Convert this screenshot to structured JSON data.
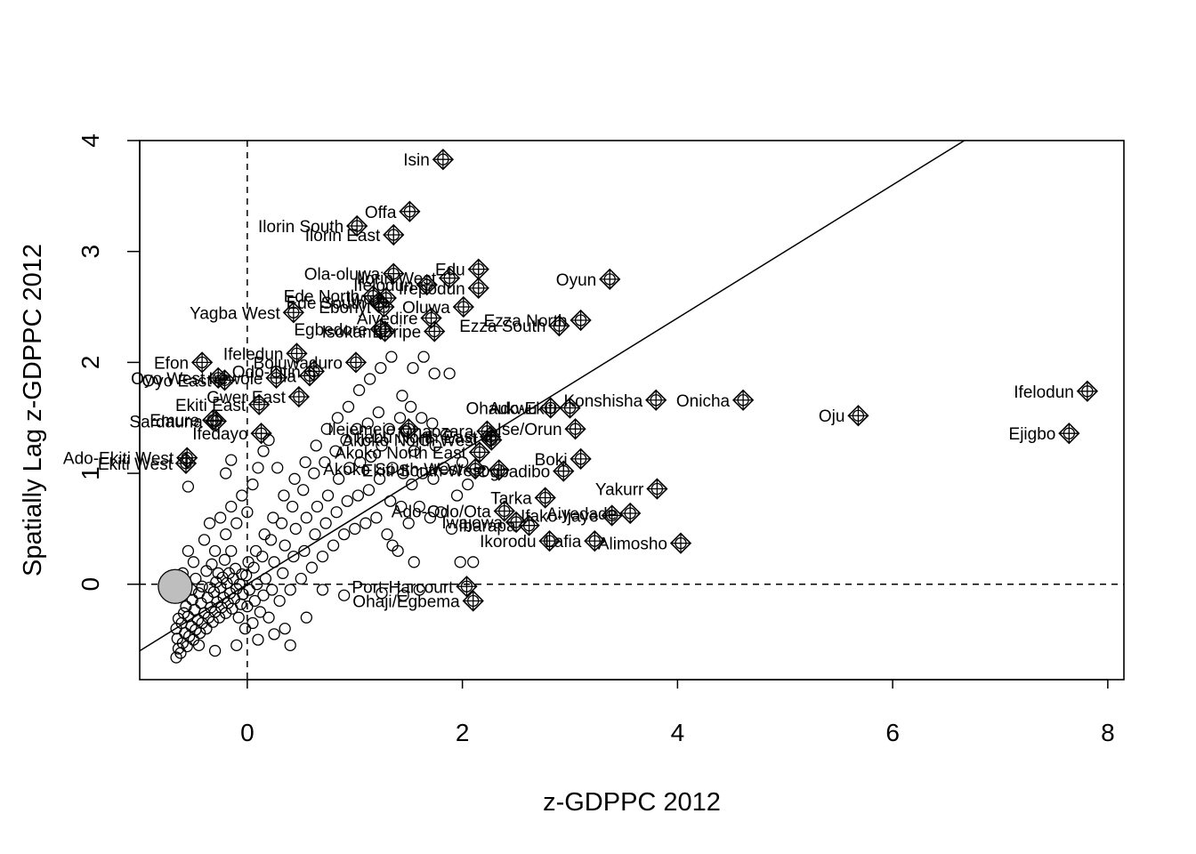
{
  "chart_data": {
    "type": "scatter",
    "title": "",
    "xlabel": "z-GDPPC 2012",
    "ylabel": "Spatially Lag z-GDPPC 2012",
    "xlim": [
      -1.0,
      8.15
    ],
    "ylim": [
      -0.86,
      4.0
    ],
    "xticks": [
      0,
      2,
      4,
      6,
      8
    ],
    "yticks": [
      0,
      1,
      2,
      3,
      4
    ],
    "xtick_labels": [
      "0",
      "2",
      "4",
      "6",
      "8"
    ],
    "ytick_labels": [
      "0",
      "1",
      "2",
      "3",
      "4"
    ],
    "reference_lines": {
      "x_mean": 0,
      "y_mean": 0,
      "style": "dashed"
    },
    "regression_line": {
      "slope": 0.6,
      "intercept": 0.0
    },
    "grid": false,
    "legend": "none",
    "highlight_point": {
      "x": -0.67,
      "y": -0.02
    },
    "influential_points": [
      {
        "label": "Isin",
        "x": 1.82,
        "y": 3.83
      },
      {
        "label": "Offa",
        "x": 1.51,
        "y": 3.36
      },
      {
        "label": "Ilorin South",
        "x": 1.02,
        "y": 3.23
      },
      {
        "label": "Ilorin East",
        "x": 1.36,
        "y": 3.15
      },
      {
        "label": "Edu",
        "x": 2.15,
        "y": 2.84
      },
      {
        "label": "Ola-oluwa",
        "x": 1.36,
        "y": 2.8
      },
      {
        "label": "Ilorin West",
        "x": 1.88,
        "y": 2.76
      },
      {
        "label": "Oyun",
        "x": 3.37,
        "y": 2.75
      },
      {
        "label": "Ifelodun",
        "x": 1.67,
        "y": 2.7
      },
      {
        "label": "Irepodun",
        "x": 2.15,
        "y": 2.67
      },
      {
        "label": "Ede North",
        "x": 1.17,
        "y": 2.6
      },
      {
        "label": "Iwo",
        "x": 1.29,
        "y": 2.58
      },
      {
        "label": "Ede South",
        "x": 1.22,
        "y": 2.54
      },
      {
        "label": "Ebonyi",
        "x": 1.27,
        "y": 2.5
      },
      {
        "label": "Oluwa",
        "x": 2.01,
        "y": 2.5
      },
      {
        "label": "Yagba West",
        "x": 0.43,
        "y": 2.45
      },
      {
        "label": "Aiyedire",
        "x": 1.71,
        "y": 2.4
      },
      {
        "label": "Ezza North",
        "x": 3.1,
        "y": 2.38
      },
      {
        "label": "Ezza South",
        "x": 2.9,
        "y": 2.33
      },
      {
        "label": "Egbedore",
        "x": 1.24,
        "y": 2.3
      },
      {
        "label": "Isokan",
        "x": 1.28,
        "y": 2.28
      },
      {
        "label": "Boripe",
        "x": 1.74,
        "y": 2.28
      },
      {
        "label": "Ifeledun",
        "x": 0.46,
        "y": 2.08
      },
      {
        "label": "Efon",
        "x": -0.42,
        "y": 2.0
      },
      {
        "label": "Boluwaduro",
        "x": 1.01,
        "y": 2.0
      },
      {
        "label": "Odo-Otin",
        "x": 0.62,
        "y": 1.92
      },
      {
        "label": "Ila",
        "x": 0.58,
        "y": 1.88
      },
      {
        "label": "Irewole",
        "x": 0.27,
        "y": 1.86
      },
      {
        "label": "Oyo West",
        "x": -0.27,
        "y": 1.86
      },
      {
        "label": "Oyo East",
        "x": -0.21,
        "y": 1.84
      },
      {
        "label": "Gwer East",
        "x": 0.48,
        "y": 1.69
      },
      {
        "label": "Ekiti East",
        "x": 0.11,
        "y": 1.62
      },
      {
        "label": "Ifelodun",
        "x": 7.81,
        "y": 1.74
      },
      {
        "label": "Onicha",
        "x": 4.61,
        "y": 1.66
      },
      {
        "label": "Konshisha",
        "x": 3.8,
        "y": 1.66
      },
      {
        "label": "Ohaukwu",
        "x": 2.82,
        "y": 1.59
      },
      {
        "label": "Ado-Ekiti",
        "x": 3.0,
        "y": 1.59
      },
      {
        "label": "Oju",
        "x": 5.68,
        "y": 1.52
      },
      {
        "label": "Emure",
        "x": -0.32,
        "y": 1.48
      },
      {
        "label": "Sardauna",
        "x": -0.29,
        "y": 1.47
      },
      {
        "label": "Ise/Orun",
        "x": 3.05,
        "y": 1.4
      },
      {
        "label": "Ohaozara",
        "x": 2.23,
        "y": 1.38
      },
      {
        "label": "Ifedayo",
        "x": 0.13,
        "y": 1.36
      },
      {
        "label": "Ejigbo",
        "x": 7.64,
        "y": 1.36
      },
      {
        "label": "Ijebu North East",
        "x": 2.26,
        "y": 1.33
      },
      {
        "label": "Akoko North West",
        "x": 2.27,
        "y": 1.3
      },
      {
        "label": "Akoko North East",
        "x": 2.16,
        "y": 1.19
      },
      {
        "label": "Ilejemeje",
        "x": 1.5,
        "y": 1.4
      },
      {
        "label": "Boki",
        "x": 3.1,
        "y": 1.13
      },
      {
        "label": "Ado-Ekiti West",
        "x": -0.56,
        "y": 1.14
      },
      {
        "label": "Ekiti West",
        "x": -0.57,
        "y": 1.09
      },
      {
        "label": "Ekiti South West",
        "x": 2.34,
        "y": 1.03
      },
      {
        "label": "Akoko South West",
        "x": 2.12,
        "y": 1.04
      },
      {
        "label": "Ogbadibo",
        "x": 2.94,
        "y": 1.02
      },
      {
        "label": "Yakurr",
        "x": 3.81,
        "y": 0.86
      },
      {
        "label": "Tarka",
        "x": 2.77,
        "y": 0.78
      },
      {
        "label": "Ado-Odo/Ota",
        "x": 2.39,
        "y": 0.66
      },
      {
        "label": "Aiyedade",
        "x": 3.56,
        "y": 0.64
      },
      {
        "label": "Ifako-Ijaye",
        "x": 3.39,
        "y": 0.62
      },
      {
        "label": "Iwajowa",
        "x": 2.5,
        "y": 0.56
      },
      {
        "label": "Ibarapa",
        "x": 2.62,
        "y": 0.53
      },
      {
        "label": "Ikorodu",
        "x": 2.81,
        "y": 0.39
      },
      {
        "label": "Lafia",
        "x": 3.23,
        "y": 0.39
      },
      {
        "label": "Alimosho",
        "x": 4.03,
        "y": 0.37
      },
      {
        "label": "Port-Harcourt",
        "x": 2.04,
        "y": -0.02
      },
      {
        "label": "Ohaji/Egbema",
        "x": 2.1,
        "y": -0.15
      }
    ],
    "points": [
      {
        "x": -0.66,
        "y": -0.66
      },
      {
        "x": -0.64,
        "y": -0.58
      },
      {
        "x": -0.65,
        "y": -0.49
      },
      {
        "x": -0.66,
        "y": -0.4
      },
      {
        "x": -0.64,
        "y": -0.31
      },
      {
        "x": -0.62,
        "y": -0.62
      },
      {
        "x": -0.6,
        "y": -0.53
      },
      {
        "x": -0.58,
        "y": -0.44
      },
      {
        "x": -0.61,
        "y": -0.35
      },
      {
        "x": -0.59,
        "y": -0.26
      },
      {
        "x": -0.56,
        "y": -0.56
      },
      {
        "x": -0.54,
        "y": -0.47
      },
      {
        "x": -0.52,
        "y": -0.38
      },
      {
        "x": -0.55,
        "y": -0.29
      },
      {
        "x": -0.57,
        "y": -0.2
      },
      {
        "x": -0.5,
        "y": -0.5
      },
      {
        "x": -0.48,
        "y": -0.41
      },
      {
        "x": -0.46,
        "y": -0.32
      },
      {
        "x": -0.49,
        "y": -0.23
      },
      {
        "x": -0.51,
        "y": -0.14
      },
      {
        "x": -0.44,
        "y": -0.44
      },
      {
        "x": -0.42,
        "y": -0.35
      },
      {
        "x": -0.4,
        "y": -0.26
      },
      {
        "x": -0.43,
        "y": -0.17
      },
      {
        "x": -0.45,
        "y": -0.08
      },
      {
        "x": -0.38,
        "y": -0.4
      },
      {
        "x": -0.36,
        "y": -0.3
      },
      {
        "x": -0.34,
        "y": -0.21
      },
      {
        "x": -0.37,
        "y": -0.12
      },
      {
        "x": -0.35,
        "y": -0.03
      },
      {
        "x": -0.32,
        "y": -0.34
      },
      {
        "x": -0.3,
        "y": -0.25
      },
      {
        "x": -0.28,
        "y": -0.16
      },
      {
        "x": -0.31,
        "y": -0.07
      },
      {
        "x": -0.29,
        "y": 0.02
      },
      {
        "x": -0.26,
        "y": -0.3
      },
      {
        "x": -0.24,
        "y": -0.21
      },
      {
        "x": -0.22,
        "y": -0.12
      },
      {
        "x": -0.25,
        "y": -0.03
      },
      {
        "x": -0.23,
        "y": 0.06
      },
      {
        "x": -0.2,
        "y": -0.26
      },
      {
        "x": -0.18,
        "y": -0.17
      },
      {
        "x": -0.16,
        "y": -0.08
      },
      {
        "x": -0.19,
        "y": 0.01
      },
      {
        "x": -0.17,
        "y": 0.1
      },
      {
        "x": -0.14,
        "y": -0.22
      },
      {
        "x": -0.12,
        "y": -0.13
      },
      {
        "x": -0.1,
        "y": -0.04
      },
      {
        "x": -0.13,
        "y": 0.05
      },
      {
        "x": -0.11,
        "y": 0.14
      },
      {
        "x": -0.08,
        "y": -0.3
      },
      {
        "x": -0.06,
        "y": -0.18
      },
      {
        "x": -0.04,
        "y": -0.09
      },
      {
        "x": -0.07,
        "y": 0.0
      },
      {
        "x": -0.05,
        "y": 0.09
      },
      {
        "x": -0.02,
        "y": -0.4
      },
      {
        "x": 0.0,
        "y": -0.2
      },
      {
        "x": 0.02,
        "y": -0.05
      },
      {
        "x": -0.01,
        "y": 0.08
      },
      {
        "x": 0.01,
        "y": 0.2
      },
      {
        "x": 0.05,
        "y": -0.35
      },
      {
        "x": 0.07,
        "y": -0.15
      },
      {
        "x": 0.09,
        "y": 0.0
      },
      {
        "x": 0.06,
        "y": 0.15
      },
      {
        "x": 0.08,
        "y": 0.3
      },
      {
        "x": 0.12,
        "y": -0.25
      },
      {
        "x": 0.15,
        "y": -0.1
      },
      {
        "x": 0.17,
        "y": 0.05
      },
      {
        "x": 0.14,
        "y": 0.25
      },
      {
        "x": 0.16,
        "y": 0.45
      },
      {
        "x": 0.2,
        "y": -0.3
      },
      {
        "x": 0.23,
        "y": -0.05
      },
      {
        "x": 0.25,
        "y": 0.2
      },
      {
        "x": 0.22,
        "y": 0.4
      },
      {
        "x": 0.24,
        "y": 0.6
      },
      {
        "x": 0.3,
        "y": -0.15
      },
      {
        "x": 0.33,
        "y": 0.1
      },
      {
        "x": 0.35,
        "y": 0.35
      },
      {
        "x": 0.32,
        "y": 0.55
      },
      {
        "x": 0.34,
        "y": 0.8
      },
      {
        "x": 0.4,
        "y": -0.05
      },
      {
        "x": 0.43,
        "y": 0.25
      },
      {
        "x": 0.45,
        "y": 0.5
      },
      {
        "x": 0.42,
        "y": 0.7
      },
      {
        "x": 0.44,
        "y": 0.95
      },
      {
        "x": 0.5,
        "y": 0.05
      },
      {
        "x": 0.53,
        "y": 0.3
      },
      {
        "x": 0.55,
        "y": 0.6
      },
      {
        "x": 0.52,
        "y": 0.85
      },
      {
        "x": 0.54,
        "y": 1.1
      },
      {
        "x": 0.6,
        "y": 0.15
      },
      {
        "x": 0.63,
        "y": 0.45
      },
      {
        "x": 0.65,
        "y": 0.7
      },
      {
        "x": 0.62,
        "y": 1.0
      },
      {
        "x": 0.64,
        "y": 1.25
      },
      {
        "x": 0.7,
        "y": 0.25
      },
      {
        "x": 0.73,
        "y": 0.55
      },
      {
        "x": 0.75,
        "y": 0.8
      },
      {
        "x": 0.72,
        "y": 1.1
      },
      {
        "x": 0.74,
        "y": 1.4
      },
      {
        "x": 0.8,
        "y": 0.35
      },
      {
        "x": 0.83,
        "y": 0.65
      },
      {
        "x": 0.85,
        "y": 0.95
      },
      {
        "x": 0.82,
        "y": 1.2
      },
      {
        "x": 0.84,
        "y": 1.5
      },
      {
        "x": 0.9,
        "y": 0.45
      },
      {
        "x": 0.93,
        "y": 0.75
      },
      {
        "x": 0.95,
        "y": 1.05
      },
      {
        "x": 0.92,
        "y": 1.3
      },
      {
        "x": 0.94,
        "y": 1.6
      },
      {
        "x": 1.0,
        "y": 0.5
      },
      {
        "x": 1.03,
        "y": 0.8
      },
      {
        "x": 1.05,
        "y": 1.1
      },
      {
        "x": 1.02,
        "y": 1.4
      },
      {
        "x": 1.04,
        "y": 1.75
      },
      {
        "x": 1.1,
        "y": 0.55
      },
      {
        "x": 1.13,
        "y": 0.85
      },
      {
        "x": 1.15,
        "y": 1.15
      },
      {
        "x": 1.12,
        "y": 1.45
      },
      {
        "x": 1.14,
        "y": 1.85
      },
      {
        "x": 1.2,
        "y": 0.6
      },
      {
        "x": 1.23,
        "y": 0.95
      },
      {
        "x": 1.25,
        "y": 1.25
      },
      {
        "x": 1.22,
        "y": 1.55
      },
      {
        "x": 1.24,
        "y": 1.95
      },
      {
        "x": 1.3,
        "y": 0.45
      },
      {
        "x": 1.33,
        "y": 0.75
      },
      {
        "x": 1.35,
        "y": 1.05
      },
      {
        "x": 1.32,
        "y": 1.4
      },
      {
        "x": 1.34,
        "y": 2.05
      },
      {
        "x": 1.4,
        "y": 0.3
      },
      {
        "x": 1.43,
        "y": 0.7
      },
      {
        "x": 1.45,
        "y": 1.0
      },
      {
        "x": 1.42,
        "y": 1.5
      },
      {
        "x": 1.44,
        "y": 1.7
      },
      {
        "x": 1.5,
        "y": 0.55
      },
      {
        "x": 1.53,
        "y": 0.9
      },
      {
        "x": 1.55,
        "y": 1.2
      },
      {
        "x": 1.52,
        "y": 1.6
      },
      {
        "x": 1.54,
        "y": 1.95
      },
      {
        "x": 1.6,
        "y": 0.7
      },
      {
        "x": 1.63,
        "y": 1.0
      },
      {
        "x": 1.65,
        "y": 1.3
      },
      {
        "x": 1.62,
        "y": 1.5
      },
      {
        "x": 1.64,
        "y": 2.05
      },
      {
        "x": 1.7,
        "y": 0.6
      },
      {
        "x": 1.73,
        "y": 0.95
      },
      {
        "x": 1.75,
        "y": 1.25
      },
      {
        "x": 1.72,
        "y": 1.45
      },
      {
        "x": 1.74,
        "y": 1.9
      },
      {
        "x": 1.8,
        "y": 0.65
      },
      {
        "x": 1.83,
        "y": 1.05
      },
      {
        "x": 1.85,
        "y": 1.35
      },
      {
        "x": 1.9,
        "y": 0.5
      },
      {
        "x": 1.88,
        "y": 1.9
      },
      {
        "x": 1.95,
        "y": 0.8
      },
      {
        "x": 2.0,
        "y": 1.1
      },
      {
        "x": 2.05,
        "y": 0.9
      },
      {
        "x": 2.1,
        "y": 0.2
      },
      {
        "x": 1.98,
        "y": 0.2
      },
      {
        "x": 1.6,
        "y": -0.05
      },
      {
        "x": 1.45,
        "y": -0.1
      },
      {
        "x": 1.55,
        "y": 0.2
      },
      {
        "x": 1.25,
        "y": -0.08
      },
      {
        "x": 1.35,
        "y": 0.35
      },
      {
        "x": 0.7,
        "y": -0.05
      },
      {
        "x": 0.9,
        "y": -0.1
      },
      {
        "x": 0.4,
        "y": -0.55
      },
      {
        "x": 0.25,
        "y": -0.45
      },
      {
        "x": 0.1,
        "y": -0.5
      },
      {
        "x": -0.1,
        "y": -0.55
      },
      {
        "x": -0.3,
        "y": -0.6
      },
      {
        "x": -0.45,
        "y": -0.55
      },
      {
        "x": 0.55,
        "y": -0.3
      },
      {
        "x": 0.35,
        "y": -0.4
      },
      {
        "x": -0.6,
        "y": 0.1
      },
      {
        "x": -0.55,
        "y": 0.3
      },
      {
        "x": -0.5,
        "y": 0.2
      },
      {
        "x": -0.4,
        "y": 0.4
      },
      {
        "x": -0.35,
        "y": 0.55
      },
      {
        "x": -0.3,
        "y": 0.3
      },
      {
        "x": -0.25,
        "y": 0.6
      },
      {
        "x": -0.2,
        "y": 0.45
      },
      {
        "x": -0.15,
        "y": 0.7
      },
      {
        "x": -0.1,
        "y": 0.55
      },
      {
        "x": -0.05,
        "y": 0.8
      },
      {
        "x": 0.0,
        "y": 0.65
      },
      {
        "x": 0.05,
        "y": 0.9
      },
      {
        "x": 0.1,
        "y": 1.05
      },
      {
        "x": 0.15,
        "y": 1.2
      },
      {
        "x": -0.55,
        "y": 0.88
      },
      {
        "x": -0.2,
        "y": 1.0
      },
      {
        "x": -0.15,
        "y": 1.12
      },
      {
        "x": 0.2,
        "y": 1.3
      },
      {
        "x": 0.28,
        "y": 1.05
      },
      {
        "x": -0.6,
        "y": -0.1
      },
      {
        "x": -0.58,
        "y": 0.0
      },
      {
        "x": -0.52,
        "y": -0.05
      },
      {
        "x": -0.48,
        "y": 0.05
      },
      {
        "x": -0.42,
        "y": -0.02
      },
      {
        "x": -0.38,
        "y": 0.12
      },
      {
        "x": -0.33,
        "y": 0.18
      },
      {
        "x": -0.27,
        "y": 0.1
      },
      {
        "x": -0.21,
        "y": 0.22
      },
      {
        "x": -0.15,
        "y": 0.3
      }
    ]
  }
}
